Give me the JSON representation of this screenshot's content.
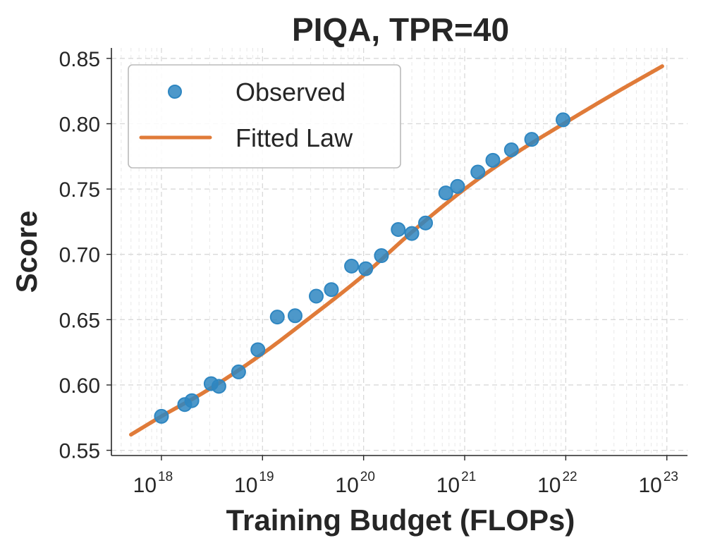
{
  "chart_data": {
    "type": "scatter",
    "title": "PIQA, TPR=40",
    "xlabel": "Training Budget (FLOPs)",
    "ylabel": "Score",
    "xscale": "log",
    "xlim": [
      3.2e+17,
      1.6e+23
    ],
    "ylim": [
      0.546,
      0.858
    ],
    "grid": true,
    "legend_position": "upper-left",
    "x_ticks": [
      {
        "base": "10",
        "exp": "18",
        "value": 1e+18
      },
      {
        "base": "10",
        "exp": "19",
        "value": 1e+19
      },
      {
        "base": "10",
        "exp": "20",
        "value": 1e+20
      },
      {
        "base": "10",
        "exp": "21",
        "value": 1e+21
      },
      {
        "base": "10",
        "exp": "22",
        "value": 1e+22
      },
      {
        "base": "10",
        "exp": "23",
        "value": 1e+23
      }
    ],
    "y_ticks": [
      {
        "label": "0.55",
        "value": 0.55
      },
      {
        "label": "0.60",
        "value": 0.6
      },
      {
        "label": "0.65",
        "value": 0.65
      },
      {
        "label": "0.70",
        "value": 0.7
      },
      {
        "label": "0.75",
        "value": 0.75
      },
      {
        "label": "0.80",
        "value": 0.8
      },
      {
        "label": "0.85",
        "value": 0.85
      }
    ],
    "series": [
      {
        "name": "Observed",
        "kind": "scatter",
        "color": "#2e86c1",
        "points": [
          {
            "x": 1e+18,
            "y": 0.576
          },
          {
            "x": 1.7e+18,
            "y": 0.585
          },
          {
            "x": 2e+18,
            "y": 0.588
          },
          {
            "x": 3.1e+18,
            "y": 0.601
          },
          {
            "x": 3.7e+18,
            "y": 0.599
          },
          {
            "x": 5.8e+18,
            "y": 0.61
          },
          {
            "x": 9e+18,
            "y": 0.627
          },
          {
            "x": 1.4e+19,
            "y": 0.652
          },
          {
            "x": 2.1e+19,
            "y": 0.653
          },
          {
            "x": 3.4e+19,
            "y": 0.668
          },
          {
            "x": 4.8e+19,
            "y": 0.673
          },
          {
            "x": 7.6e+19,
            "y": 0.691
          },
          {
            "x": 1.05e+20,
            "y": 0.689
          },
          {
            "x": 1.5e+20,
            "y": 0.699
          },
          {
            "x": 2.2e+20,
            "y": 0.719
          },
          {
            "x": 3e+20,
            "y": 0.716
          },
          {
            "x": 4.1e+20,
            "y": 0.724
          },
          {
            "x": 6.5e+20,
            "y": 0.747
          },
          {
            "x": 8.5e+20,
            "y": 0.752
          },
          {
            "x": 1.35e+21,
            "y": 0.763
          },
          {
            "x": 1.9e+21,
            "y": 0.772
          },
          {
            "x": 2.9e+21,
            "y": 0.78
          },
          {
            "x": 4.6e+21,
            "y": 0.788
          },
          {
            "x": 9.4e+21,
            "y": 0.803
          }
        ]
      },
      {
        "name": "Fitted Law",
        "kind": "line",
        "color": "#e07b39",
        "points": [
          {
            "x": 5e+17,
            "y": 0.562
          },
          {
            "x": 1e+18,
            "y": 0.576
          },
          {
            "x": 3e+18,
            "y": 0.597
          },
          {
            "x": 1e+19,
            "y": 0.624
          },
          {
            "x": 3e+19,
            "y": 0.652
          },
          {
            "x": 1e+20,
            "y": 0.684
          },
          {
            "x": 3e+20,
            "y": 0.717
          },
          {
            "x": 1e+21,
            "y": 0.75
          },
          {
            "x": 3e+21,
            "y": 0.776
          },
          {
            "x": 1e+22,
            "y": 0.801
          },
          {
            "x": 3e+22,
            "y": 0.823
          },
          {
            "x": 9e+22,
            "y": 0.844
          }
        ]
      }
    ]
  }
}
